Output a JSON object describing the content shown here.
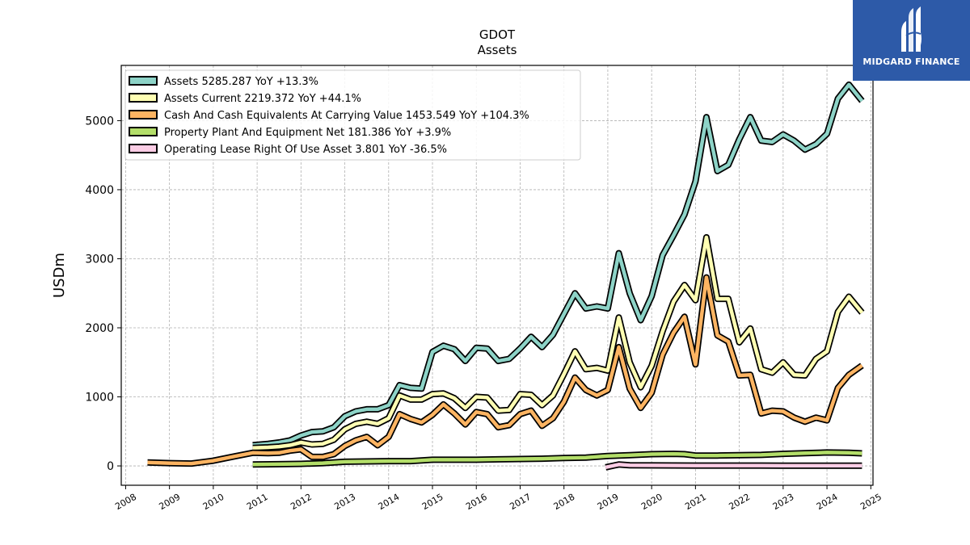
{
  "logo": {
    "text": "MIDGARD FINANCE"
  },
  "chart_data": {
    "type": "line",
    "title": "GDOT",
    "subtitle": "Assets",
    "ylabel": "USDm",
    "xlabel": "",
    "xlim": [
      2007.9,
      2025.05
    ],
    "ylim": [
      -280,
      5800
    ],
    "x_ticks": [
      2008,
      2009,
      2010,
      2011,
      2012,
      2013,
      2014,
      2015,
      2016,
      2017,
      2018,
      2019,
      2020,
      2021,
      2022,
      2023,
      2024,
      2025
    ],
    "x_tick_labels": [
      "2008",
      "2009",
      "2010",
      "2011",
      "2012",
      "2013",
      "2014",
      "2015",
      "2016",
      "2017",
      "2018",
      "2019",
      "2020",
      "2021",
      "2022",
      "2023",
      "2024",
      "2025"
    ],
    "y_ticks": [
      0,
      1000,
      2000,
      3000,
      4000,
      5000
    ],
    "y_tick_labels": [
      "0",
      "1000",
      "2000",
      "3000",
      "4000",
      "5000"
    ],
    "grid": true,
    "legend_position": "top-left",
    "series": [
      {
        "name": "Assets",
        "legend": "Assets  5285.287 YoY +13.3%",
        "color": "#8dd3c7",
        "points": [
          [
            2010.9,
            300
          ],
          [
            2011.25,
            320
          ],
          [
            2011.5,
            340
          ],
          [
            2011.75,
            370
          ],
          [
            2012.0,
            440
          ],
          [
            2012.25,
            490
          ],
          [
            2012.5,
            500
          ],
          [
            2012.75,
            560
          ],
          [
            2013.0,
            720
          ],
          [
            2013.25,
            790
          ],
          [
            2013.5,
            820
          ],
          [
            2013.75,
            820
          ],
          [
            2014.0,
            880
          ],
          [
            2014.25,
            1170
          ],
          [
            2014.5,
            1130
          ],
          [
            2014.75,
            1120
          ],
          [
            2015.0,
            1650
          ],
          [
            2015.25,
            1740
          ],
          [
            2015.5,
            1690
          ],
          [
            2015.75,
            1520
          ],
          [
            2016.0,
            1710
          ],
          [
            2016.25,
            1700
          ],
          [
            2016.5,
            1520
          ],
          [
            2016.75,
            1550
          ],
          [
            2017.0,
            1700
          ],
          [
            2017.25,
            1870
          ],
          [
            2017.5,
            1720
          ],
          [
            2017.75,
            1900
          ],
          [
            2018.0,
            2200
          ],
          [
            2018.25,
            2500
          ],
          [
            2018.5,
            2280
          ],
          [
            2018.75,
            2310
          ],
          [
            2019.0,
            2280
          ],
          [
            2019.25,
            3080
          ],
          [
            2019.5,
            2500
          ],
          [
            2019.75,
            2110
          ],
          [
            2020.0,
            2460
          ],
          [
            2020.25,
            3050
          ],
          [
            2020.5,
            3340
          ],
          [
            2020.75,
            3640
          ],
          [
            2021.0,
            4120
          ],
          [
            2021.25,
            5050
          ],
          [
            2021.5,
            4270
          ],
          [
            2021.75,
            4360
          ],
          [
            2022.0,
            4730
          ],
          [
            2022.25,
            5050
          ],
          [
            2022.5,
            4710
          ],
          [
            2022.75,
            4690
          ],
          [
            2023.0,
            4800
          ],
          [
            2023.25,
            4710
          ],
          [
            2023.5,
            4580
          ],
          [
            2023.75,
            4660
          ],
          [
            2024.0,
            4810
          ],
          [
            2024.25,
            5320
          ],
          [
            2024.5,
            5520
          ],
          [
            2024.8,
            5285
          ]
        ]
      },
      {
        "name": "Assets Current",
        "legend": "Assets Current  2219.372 YoY +44.1%",
        "color": "#ffffb3",
        "points": [
          [
            2010.9,
            260
          ],
          [
            2011.25,
            270
          ],
          [
            2011.5,
            280
          ],
          [
            2011.75,
            300
          ],
          [
            2012.0,
            340
          ],
          [
            2012.25,
            310
          ],
          [
            2012.5,
            320
          ],
          [
            2012.75,
            380
          ],
          [
            2013.0,
            530
          ],
          [
            2013.25,
            610
          ],
          [
            2013.5,
            640
          ],
          [
            2013.75,
            610
          ],
          [
            2014.0,
            690
          ],
          [
            2014.25,
            1020
          ],
          [
            2014.5,
            960
          ],
          [
            2014.75,
            960
          ],
          [
            2015.0,
            1040
          ],
          [
            2015.25,
            1050
          ],
          [
            2015.5,
            980
          ],
          [
            2015.75,
            840
          ],
          [
            2016.0,
            1000
          ],
          [
            2016.25,
            990
          ],
          [
            2016.5,
            800
          ],
          [
            2016.75,
            810
          ],
          [
            2017.0,
            1040
          ],
          [
            2017.25,
            1030
          ],
          [
            2017.5,
            880
          ],
          [
            2017.75,
            1020
          ],
          [
            2018.0,
            1330
          ],
          [
            2018.25,
            1660
          ],
          [
            2018.5,
            1400
          ],
          [
            2018.75,
            1420
          ],
          [
            2019.0,
            1380
          ],
          [
            2019.25,
            2150
          ],
          [
            2019.5,
            1500
          ],
          [
            2019.75,
            1140
          ],
          [
            2020.0,
            1450
          ],
          [
            2020.25,
            1950
          ],
          [
            2020.5,
            2380
          ],
          [
            2020.75,
            2620
          ],
          [
            2021.0,
            2400
          ],
          [
            2021.25,
            3310
          ],
          [
            2021.5,
            2420
          ],
          [
            2021.75,
            2420
          ],
          [
            2022.0,
            1790
          ],
          [
            2022.25,
            1990
          ],
          [
            2022.5,
            1400
          ],
          [
            2022.75,
            1350
          ],
          [
            2023.0,
            1500
          ],
          [
            2023.25,
            1320
          ],
          [
            2023.5,
            1310
          ],
          [
            2023.75,
            1550
          ],
          [
            2024.0,
            1660
          ],
          [
            2024.25,
            2230
          ],
          [
            2024.5,
            2450
          ],
          [
            2024.8,
            2219.372
          ]
        ]
      },
      {
        "name": "Cash And Cash Equivalents At Carrying Value",
        "legend": "Cash And Cash Equivalents At Carrying Value  1453.549 YoY +104.3%",
        "color": "#fdb462",
        "points": [
          [
            2008.5,
            50
          ],
          [
            2009.0,
            40
          ],
          [
            2009.5,
            35
          ],
          [
            2010.0,
            75
          ],
          [
            2010.5,
            140
          ],
          [
            2010.9,
            190
          ],
          [
            2011.25,
            185
          ],
          [
            2011.5,
            190
          ],
          [
            2011.75,
            220
          ],
          [
            2012.0,
            240
          ],
          [
            2012.25,
            130
          ],
          [
            2012.5,
            130
          ],
          [
            2012.75,
            170
          ],
          [
            2013.0,
            290
          ],
          [
            2013.25,
            370
          ],
          [
            2013.5,
            420
          ],
          [
            2013.75,
            300
          ],
          [
            2014.0,
            420
          ],
          [
            2014.25,
            750
          ],
          [
            2014.5,
            680
          ],
          [
            2014.75,
            630
          ],
          [
            2015.0,
            740
          ],
          [
            2015.25,
            890
          ],
          [
            2015.5,
            760
          ],
          [
            2015.75,
            600
          ],
          [
            2016.0,
            780
          ],
          [
            2016.25,
            750
          ],
          [
            2016.5,
            560
          ],
          [
            2016.75,
            590
          ],
          [
            2017.0,
            750
          ],
          [
            2017.25,
            800
          ],
          [
            2017.5,
            580
          ],
          [
            2017.75,
            690
          ],
          [
            2018.0,
            930
          ],
          [
            2018.25,
            1280
          ],
          [
            2018.5,
            1100
          ],
          [
            2018.75,
            1020
          ],
          [
            2019.0,
            1100
          ],
          [
            2019.25,
            1720
          ],
          [
            2019.5,
            1120
          ],
          [
            2019.75,
            840
          ],
          [
            2020.0,
            1060
          ],
          [
            2020.25,
            1610
          ],
          [
            2020.5,
            1930
          ],
          [
            2020.75,
            2160
          ],
          [
            2021.0,
            1470
          ],
          [
            2021.25,
            2730
          ],
          [
            2021.5,
            1890
          ],
          [
            2021.75,
            1800
          ],
          [
            2022.0,
            1310
          ],
          [
            2022.25,
            1320
          ],
          [
            2022.5,
            760
          ],
          [
            2022.75,
            800
          ],
          [
            2023.0,
            790
          ],
          [
            2023.25,
            700
          ],
          [
            2023.5,
            640
          ],
          [
            2023.75,
            700
          ],
          [
            2024.0,
            660
          ],
          [
            2024.25,
            1130
          ],
          [
            2024.5,
            1320
          ],
          [
            2024.8,
            1453.549
          ]
        ]
      },
      {
        "name": "Property Plant And Equipment Net",
        "legend": "Property Plant And Equipment Net  181.386 YoY +3.9%",
        "color": "#b3de69",
        "points": [
          [
            2010.9,
            20
          ],
          [
            2011.5,
            25
          ],
          [
            2012.0,
            30
          ],
          [
            2012.5,
            40
          ],
          [
            2013.0,
            60
          ],
          [
            2013.5,
            65
          ],
          [
            2014.0,
            70
          ],
          [
            2014.5,
            70
          ],
          [
            2015.0,
            90
          ],
          [
            2015.5,
            90
          ],
          [
            2016.0,
            90
          ],
          [
            2016.5,
            95
          ],
          [
            2017.0,
            100
          ],
          [
            2017.5,
            105
          ],
          [
            2018.0,
            115
          ],
          [
            2018.5,
            120
          ],
          [
            2019.0,
            145
          ],
          [
            2019.5,
            155
          ],
          [
            2020.0,
            170
          ],
          [
            2020.5,
            175
          ],
          [
            2020.75,
            170
          ],
          [
            2021.0,
            150
          ],
          [
            2021.5,
            150
          ],
          [
            2022.0,
            155
          ],
          [
            2022.5,
            160
          ],
          [
            2023.0,
            175
          ],
          [
            2023.5,
            185
          ],
          [
            2024.0,
            195
          ],
          [
            2024.5,
            190
          ],
          [
            2024.8,
            181.386
          ]
        ]
      },
      {
        "name": "Operating Lease Right Of Use Asset",
        "legend": "Operating Lease Right Of Use Asset  3.801 YoY -36.5%",
        "color": "#fccde5",
        "points": [
          [
            2018.95,
            -20
          ],
          [
            2019.25,
            20
          ],
          [
            2019.5,
            10
          ],
          [
            2020.0,
            8
          ],
          [
            2020.5,
            6
          ],
          [
            2021.0,
            5
          ],
          [
            2021.5,
            5
          ],
          [
            2022.0,
            5
          ],
          [
            2022.5,
            5
          ],
          [
            2023.0,
            4
          ],
          [
            2023.5,
            4
          ],
          [
            2024.0,
            4
          ],
          [
            2024.8,
            3.801
          ]
        ]
      }
    ]
  }
}
